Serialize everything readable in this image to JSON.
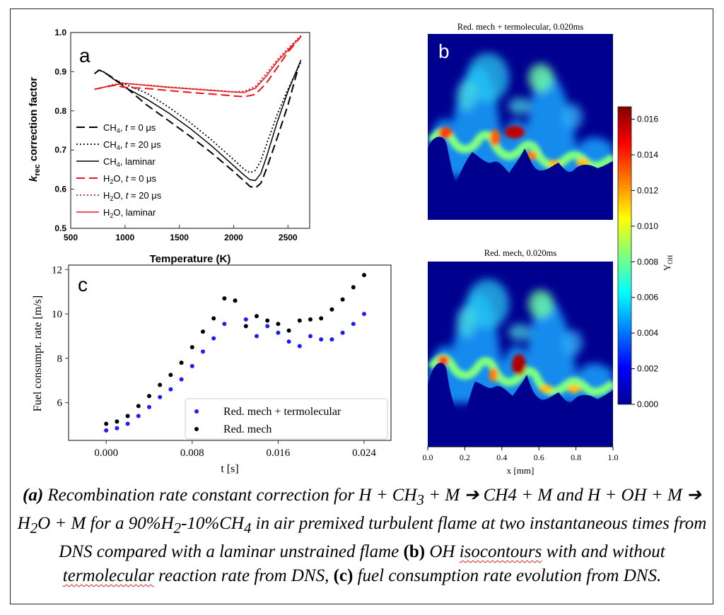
{
  "panel_letters": {
    "a": "a",
    "b": "b",
    "c": "c"
  },
  "map_top_title": "Red. mech + termolecular, 0.020ms",
  "map_bottom_title": "Red. mech, 0.020ms",
  "map_xlabel": "x [mm]",
  "map_xticks": [
    "0.0",
    "0.2",
    "0.4",
    "0.6",
    "0.8",
    "1.0"
  ],
  "colorbar": {
    "label": "Y",
    "label_sub": "OH",
    "ticks": [
      "0.000",
      "0.002",
      "0.004",
      "0.006",
      "0.008",
      "0.010",
      "0.012",
      "0.014",
      "0.016"
    ],
    "max": 0.0167
  },
  "caption": {
    "a_label": "(a)",
    "a_text": " Recombination rate constant correction for H + CH",
    "sub3": "3",
    "a_text2": " + M ",
    "arrow": "➔",
    "a_text3": " CH4 + M and H + OH + M ",
    "a_text4": " H",
    "sub2a": "2",
    "a_text5": "O + M for a 90%H",
    "sub2b": "2",
    "a_text6": "-10%CH",
    "sub4": "4",
    "a_text7": " in air premixed turbulent flame at two instantaneous times from DNS compared with a laminar unstrained flame ",
    "b_label": "(b)",
    "b_text1": " OH ",
    "b_wavy1": "isocontours",
    "b_text2": " with and without ",
    "b_wavy2": "termolecular",
    "b_text3": " reaction rate from DNS, ",
    "c_label": "(c)",
    "c_text": " fuel consumption rate evolution from DNS."
  },
  "chart_data": [
    {
      "id": "a",
      "type": "line",
      "xlabel": "Temperature (K)",
      "ylabel_main": "k",
      "ylabel_sub": "rec",
      "ylabel_rest": " correction factor",
      "xlim": [
        500,
        2700
      ],
      "ylim": [
        0.5,
        1.0
      ],
      "xticks": [
        500,
        1000,
        1500,
        2000,
        2500
      ],
      "yticks": [
        0.5,
        0.6,
        0.7,
        0.8,
        0.9,
        1.0
      ],
      "legend_position": "left",
      "series": [
        {
          "name": "CH4, t = 0 μs",
          "legend": {
            "m": "CH",
            "s": "4",
            "r": ", ",
            "t": "t",
            "e": " = 0 μs"
          },
          "color": "#000000",
          "dash": "12,6",
          "width": 2,
          "x": [
            720,
            760,
            800,
            900,
            1000,
            1200,
            1400,
            1600,
            1800,
            2000,
            2100,
            2150,
            2200,
            2250,
            2300,
            2400,
            2500,
            2600
          ],
          "y": [
            0.895,
            0.904,
            0.9,
            0.882,
            0.862,
            0.815,
            0.775,
            0.735,
            0.692,
            0.645,
            0.62,
            0.607,
            0.603,
            0.615,
            0.65,
            0.73,
            0.815,
            0.915
          ]
        },
        {
          "name": "CH4, t = 20 μs",
          "legend": {
            "m": "CH",
            "s": "4",
            "r": ", ",
            "t": "t",
            "e": " = 20 μs"
          },
          "color": "#000000",
          "dash": "2,3",
          "width": 1.8,
          "x": [
            720,
            760,
            800,
            900,
            1000,
            1200,
            1400,
            1600,
            1800,
            2000,
            2100,
            2150,
            2200,
            2250,
            2300,
            2400,
            2500,
            2620
          ],
          "y": [
            0.895,
            0.904,
            0.9,
            0.88,
            0.868,
            0.845,
            0.81,
            0.77,
            0.725,
            0.675,
            0.65,
            0.642,
            0.648,
            0.672,
            0.712,
            0.79,
            0.855,
            0.925
          ]
        },
        {
          "name": "CH4, laminar",
          "legend": {
            "m": "CH",
            "s": "4",
            "r": ", laminar",
            "t": "",
            "e": ""
          },
          "color": "#000000",
          "dash": "",
          "width": 1.5,
          "x": [
            720,
            760,
            800,
            900,
            1000,
            1200,
            1400,
            1600,
            1800,
            2000,
            2100,
            2150,
            2200,
            2250,
            2300,
            2400,
            2500,
            2620
          ],
          "y": [
            0.895,
            0.904,
            0.9,
            0.88,
            0.86,
            0.83,
            0.795,
            0.755,
            0.71,
            0.66,
            0.635,
            0.624,
            0.622,
            0.64,
            0.68,
            0.77,
            0.85,
            0.93
          ]
        },
        {
          "name": "H2O, t = 0 μs",
          "legend": {
            "m": "H",
            "s": "2",
            "r": "O, ",
            "t": "t",
            "e": " = 0 μs"
          },
          "color": "#e8141a",
          "dash": "12,6",
          "width": 2,
          "x": [
            720,
            800,
            900,
            1000,
            1200,
            1400,
            1600,
            1800,
            2000,
            2100,
            2200,
            2300,
            2400,
            2500,
            2620
          ],
          "y": [
            0.855,
            0.86,
            0.865,
            0.86,
            0.857,
            0.852,
            0.847,
            0.843,
            0.838,
            0.836,
            0.842,
            0.87,
            0.91,
            0.95,
            0.99
          ]
        },
        {
          "name": "H2O, t = 20 μs",
          "legend": {
            "m": "H",
            "s": "2",
            "r": "O, ",
            "t": "t",
            "e": " = 20 μs"
          },
          "color": "#e8141a",
          "dash": "2,3",
          "width": 1.8,
          "x": [
            720,
            800,
            900,
            1000,
            1200,
            1400,
            1600,
            1800,
            2000,
            2100,
            2200,
            2300,
            2400,
            2500,
            2620
          ],
          "y": [
            0.855,
            0.86,
            0.868,
            0.87,
            0.866,
            0.861,
            0.857,
            0.853,
            0.849,
            0.85,
            0.862,
            0.895,
            0.93,
            0.96,
            0.992
          ]
        },
        {
          "name": "H2O, laminar",
          "legend": {
            "m": "H",
            "s": "2",
            "r": "O, laminar",
            "t": "",
            "e": ""
          },
          "color": "#e8141a",
          "dash": "",
          "width": 1.5,
          "x": [
            720,
            800,
            900,
            1000,
            1200,
            1400,
            1600,
            1800,
            2000,
            2100,
            2200,
            2300,
            2400,
            2500,
            2620
          ],
          "y": [
            0.855,
            0.86,
            0.866,
            0.87,
            0.865,
            0.86,
            0.856,
            0.852,
            0.848,
            0.847,
            0.858,
            0.888,
            0.925,
            0.955,
            0.99
          ]
        }
      ]
    },
    {
      "id": "c",
      "type": "scatter",
      "xlabel": "t [s]",
      "ylabel": "Fuel consumpt. rate [m/s]",
      "xlim": [
        -0.0035,
        0.0265
      ],
      "ylim": [
        4.3,
        12.2
      ],
      "xticks": [
        0.0,
        0.008,
        0.016,
        0.024
      ],
      "xtick_labels": [
        "0.000",
        "0.008",
        "0.016",
        "0.024"
      ],
      "yticks": [
        6,
        8,
        10,
        12
      ],
      "legend_position": "lower right",
      "series": [
        {
          "name": "Red. mech + termolecular",
          "color": "#1c1cff",
          "x": [
            0.0,
            0.001,
            0.002,
            0.003,
            0.004,
            0.005,
            0.006,
            0.007,
            0.008,
            0.009,
            0.01,
            0.011,
            0.012,
            0.013,
            0.014,
            0.015,
            0.016,
            0.017,
            0.018,
            0.019,
            0.02,
            0.021,
            0.022,
            0.023,
            0.024
          ],
          "y": [
            4.75,
            4.85,
            5.05,
            5.4,
            5.8,
            6.25,
            6.6,
            7.05,
            7.65,
            8.3,
            8.9,
            9.55,
            10.6,
            9.75,
            9.0,
            9.45,
            9.15,
            8.75,
            8.55,
            9.0,
            8.85,
            8.85,
            9.15,
            9.55,
            10.0
          ]
        },
        {
          "name": "Red. mech",
          "color": "#000000",
          "x": [
            0.0,
            0.001,
            0.002,
            0.003,
            0.004,
            0.005,
            0.006,
            0.007,
            0.008,
            0.009,
            0.01,
            0.011,
            0.012,
            0.013,
            0.014,
            0.015,
            0.016,
            0.017,
            0.018,
            0.019,
            0.02,
            0.021,
            0.022,
            0.023,
            0.024
          ],
          "y": [
            5.05,
            5.15,
            5.4,
            5.85,
            6.3,
            6.8,
            7.25,
            7.8,
            8.5,
            9.2,
            9.8,
            10.7,
            10.6,
            9.45,
            9.9,
            9.7,
            9.55,
            9.25,
            9.7,
            9.75,
            9.8,
            10.2,
            10.65,
            11.2,
            11.75
          ]
        }
      ]
    },
    {
      "id": "b",
      "type": "heatmap",
      "xlim": [
        0.0,
        1.0
      ],
      "value_range": [
        0.0,
        0.0167
      ]
    }
  ]
}
